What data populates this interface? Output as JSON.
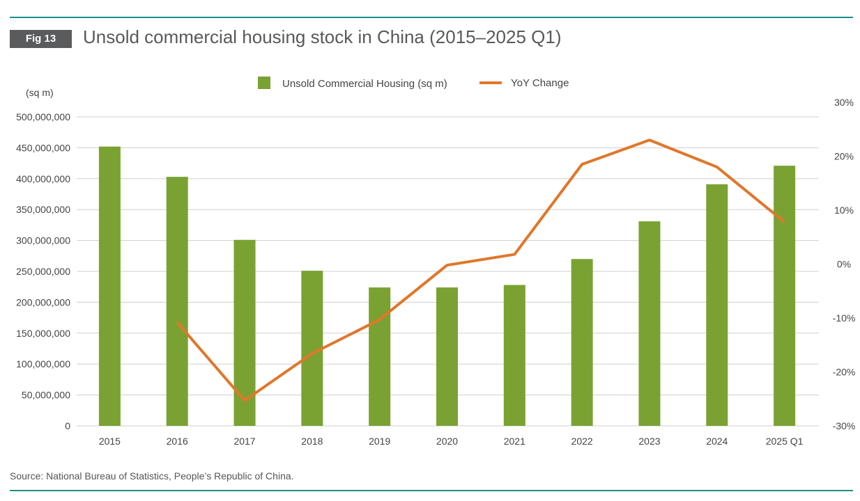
{
  "figure": {
    "badge": "Fig 13",
    "title": "Unsold commercial housing stock in China (2015–2025 Q1)",
    "source": "Source: National Bureau of Statistics, People’s Republic of China."
  },
  "colors": {
    "bar": "#7aa232",
    "line": "#e0772b",
    "grid": "#cfcfcf",
    "rule": "#1b8f8a",
    "badge": "#5a5b5d"
  },
  "chart_data": {
    "type": "bar",
    "categories": [
      "2015",
      "2016",
      "2017",
      "2018",
      "2019",
      "2020",
      "2021",
      "2022",
      "2023",
      "2024",
      "2025 Q1"
    ],
    "series": [
      {
        "name": "Unsold Commercial Housing (sq m)",
        "type": "bar",
        "axis": "left",
        "values": [
          452000000,
          403000000,
          301000000,
          251000000,
          224000000,
          224000000,
          228000000,
          270000000,
          331000000,
          391000000,
          421000000
        ]
      },
      {
        "name": "YoY Change",
        "type": "line",
        "axis": "right",
        "values": [
          null,
          -10.8,
          -25.3,
          -16.6,
          -10.3,
          -0.2,
          1.8,
          18.5,
          23.0,
          18.0,
          7.8
        ]
      }
    ],
    "left_axis": {
      "unit_label": "(sq m)",
      "range": [
        0,
        500000000
      ],
      "tick_labels": [
        "0",
        "50,000,000",
        "100,000,000",
        "150,000,000",
        "200,000,000",
        "250,000,000",
        "300,000,000",
        "350,000,000",
        "400,000,000",
        "450,000,000",
        "500,000,000"
      ]
    },
    "right_axis": {
      "range": [
        -30,
        30
      ],
      "tick_labels": [
        "-30%",
        "-20%",
        "-10%",
        "0%",
        "10%",
        "20%",
        "30%"
      ]
    },
    "grid": true,
    "legend": "top-center"
  }
}
